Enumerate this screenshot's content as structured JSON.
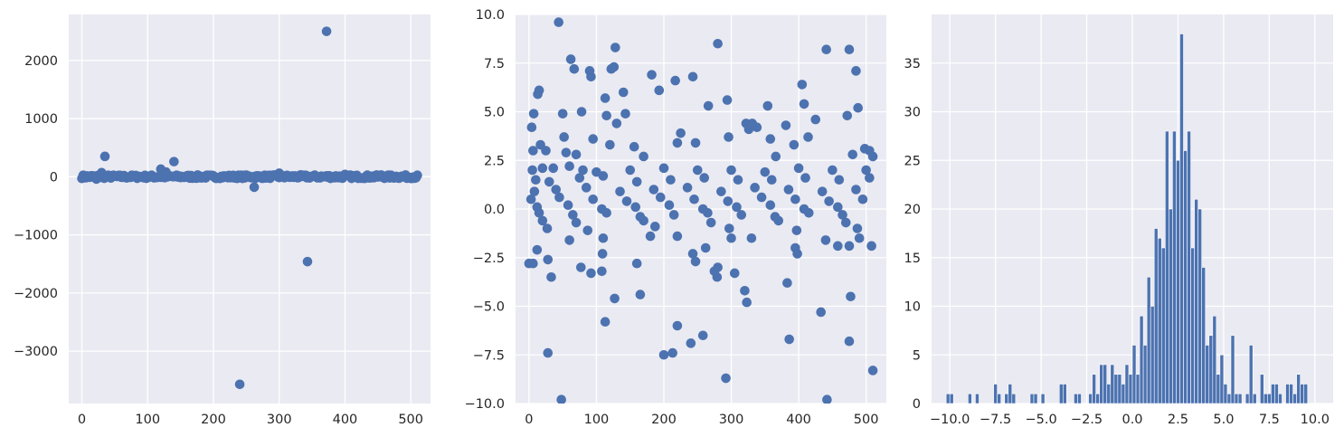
{
  "colors": {
    "background": "#eaeaf2",
    "grid": "#ffffff",
    "marker": "#4c72b0",
    "text": "#262626"
  },
  "chart_data": [
    {
      "type": "scatter",
      "title": "",
      "xlabel": "",
      "ylabel": "",
      "xlim": [
        -20,
        530
      ],
      "ylim": [
        -3900,
        2790
      ],
      "grid": true,
      "xticks": [
        0,
        100,
        200,
        300,
        400,
        500
      ],
      "xtick_labels": [
        "0",
        "100",
        "200",
        "300",
        "400",
        "500"
      ],
      "yticks": [
        -3000,
        -2000,
        -1000,
        0,
        1000,
        2000
      ],
      "ytick_labels": [
        "−3000",
        "−2000",
        "−1000",
        "0",
        "1000",
        "2000"
      ],
      "points": [
        [
          372,
          2500
        ],
        [
          35,
          350
        ],
        [
          140,
          260
        ],
        [
          120,
          130
        ],
        [
          128,
          80
        ],
        [
          30,
          70
        ],
        [
          300,
          60
        ],
        [
          400,
          40
        ],
        [
          455,
          30
        ],
        [
          22,
          -40
        ],
        [
          262,
          -180
        ],
        [
          343,
          -1460
        ],
        [
          240,
          -3570
        ]
      ],
      "dense_band": {
        "x_start": 0,
        "x_end": 511,
        "y_min": -30,
        "y_max": 30
      }
    },
    {
      "type": "scatter",
      "title": "",
      "xlabel": "",
      "ylabel": "",
      "xlim": [
        -20,
        530
      ],
      "ylim": [
        -10,
        10
      ],
      "grid": true,
      "xticks": [
        0,
        100,
        200,
        300,
        400,
        500
      ],
      "xtick_labels": [
        "0",
        "100",
        "200",
        "300",
        "400",
        "500"
      ],
      "yticks": [
        -10,
        -7.5,
        -5,
        -2.5,
        0,
        2.5,
        5,
        7.5,
        10
      ],
      "ytick_labels": [
        "−10.0",
        "−7.5",
        "−5.0",
        "−2.5",
        "0.0",
        "2.5",
        "5.0",
        "7.5",
        "10.0"
      ],
      "points": [
        [
          44,
          9.6
        ],
        [
          280,
          8.5
        ],
        [
          128,
          8.3
        ],
        [
          441,
          8.2
        ],
        [
          475,
          8.2
        ],
        [
          62,
          7.7
        ],
        [
          126,
          7.3
        ],
        [
          67,
          7.2
        ],
        [
          122,
          7.2
        ],
        [
          485,
          7.1
        ],
        [
          90,
          7.1
        ],
        [
          92,
          6.8
        ],
        [
          182,
          6.9
        ],
        [
          217,
          6.6
        ],
        [
          243,
          6.8
        ],
        [
          405,
          6.4
        ],
        [
          193,
          6.1
        ],
        [
          15,
          6.1
        ],
        [
          13,
          5.9
        ],
        [
          140,
          6.0
        ],
        [
          113,
          5.7
        ],
        [
          294,
          5.6
        ],
        [
          408,
          5.4
        ],
        [
          354,
          5.3
        ],
        [
          266,
          5.3
        ],
        [
          488,
          5.2
        ],
        [
          78,
          5.0
        ],
        [
          7,
          4.9
        ],
        [
          50,
          4.9
        ],
        [
          115,
          4.8
        ],
        [
          143,
          4.9
        ],
        [
          472,
          4.8
        ],
        [
          425,
          4.6
        ],
        [
          130,
          4.4
        ],
        [
          322,
          4.4
        ],
        [
          331,
          4.4
        ],
        [
          381,
          4.3
        ],
        [
          326,
          4.1
        ],
        [
          338,
          4.2
        ],
        [
          4,
          4.2
        ],
        [
          225,
          3.9
        ],
        [
          52,
          3.7
        ],
        [
          296,
          3.7
        ],
        [
          414,
          3.7
        ],
        [
          95,
          3.6
        ],
        [
          358,
          3.6
        ],
        [
          247,
          3.4
        ],
        [
          17,
          3.3
        ],
        [
          120,
          3.3
        ],
        [
          220,
          3.4
        ],
        [
          393,
          3.3
        ],
        [
          6,
          3.0
        ],
        [
          25,
          3.0
        ],
        [
          156,
          3.2
        ],
        [
          498,
          3.1
        ],
        [
          505,
          3.0
        ],
        [
          55,
          2.9
        ],
        [
          70,
          2.8
        ],
        [
          170,
          2.7
        ],
        [
          366,
          2.7
        ],
        [
          480,
          2.8
        ],
        [
          510,
          2.7
        ],
        [
          5,
          2.0
        ],
        [
          20,
          2.1
        ],
        [
          36,
          2.1
        ],
        [
          60,
          2.2
        ],
        [
          80,
          2.0
        ],
        [
          100,
          1.9
        ],
        [
          150,
          2.0
        ],
        [
          200,
          2.1
        ],
        [
          250,
          2.0
        ],
        [
          300,
          2.0
        ],
        [
          350,
          1.9
        ],
        [
          400,
          2.1
        ],
        [
          450,
          2.0
        ],
        [
          500,
          2.0
        ],
        [
          10,
          1.5
        ],
        [
          30,
          1.4
        ],
        [
          75,
          1.6
        ],
        [
          110,
          1.7
        ],
        [
          160,
          1.4
        ],
        [
          210,
          1.5
        ],
        [
          260,
          1.6
        ],
        [
          310,
          1.5
        ],
        [
          360,
          1.5
        ],
        [
          410,
          1.6
        ],
        [
          460,
          1.5
        ],
        [
          505,
          1.6
        ],
        [
          8,
          0.9
        ],
        [
          40,
          1.0
        ],
        [
          85,
          1.1
        ],
        [
          135,
          0.9
        ],
        [
          185,
          1.0
        ],
        [
          235,
          1.1
        ],
        [
          285,
          0.9
        ],
        [
          335,
          1.1
        ],
        [
          385,
          1.0
        ],
        [
          435,
          0.9
        ],
        [
          485,
          1.0
        ],
        [
          3,
          0.5
        ],
        [
          45,
          0.6
        ],
        [
          95,
          0.5
        ],
        [
          145,
          0.4
        ],
        [
          195,
          0.6
        ],
        [
          245,
          0.5
        ],
        [
          295,
          0.4
        ],
        [
          345,
          0.6
        ],
        [
          395,
          0.5
        ],
        [
          445,
          0.4
        ],
        [
          495,
          0.5
        ],
        [
          12,
          0.1
        ],
        [
          58,
          0.2
        ],
        [
          108,
          0.0
        ],
        [
          158,
          0.1
        ],
        [
          208,
          0.2
        ],
        [
          258,
          0.0
        ],
        [
          308,
          0.1
        ],
        [
          358,
          0.2
        ],
        [
          408,
          0.0
        ],
        [
          458,
          0.1
        ],
        [
          15,
          -0.2
        ],
        [
          65,
          -0.3
        ],
        [
          115,
          -0.2
        ],
        [
          165,
          -0.4
        ],
        [
          215,
          -0.3
        ],
        [
          265,
          -0.2
        ],
        [
          315,
          -0.3
        ],
        [
          365,
          -0.4
        ],
        [
          415,
          -0.2
        ],
        [
          465,
          -0.3
        ],
        [
          20,
          -0.6
        ],
        [
          70,
          -0.7
        ],
        [
          170,
          -0.6
        ],
        [
          270,
          -0.7
        ],
        [
          370,
          -0.6
        ],
        [
          470,
          -0.7
        ],
        [
          27,
          -1.0
        ],
        [
          87,
          -1.1
        ],
        [
          187,
          -0.9
        ],
        [
          297,
          -1.0
        ],
        [
          397,
          -1.1
        ],
        [
          487,
          -1.0
        ],
        [
          110,
          -1.5
        ],
        [
          220,
          -1.4
        ],
        [
          330,
          -1.5
        ],
        [
          440,
          -1.6
        ],
        [
          60,
          -1.6
        ],
        [
          180,
          -1.4
        ],
        [
          300,
          -1.5
        ],
        [
          12,
          -2.1
        ],
        [
          262,
          -2.0
        ],
        [
          395,
          -2.0
        ],
        [
          458,
          -1.9
        ],
        [
          475,
          -1.9
        ],
        [
          490,
          -1.5
        ],
        [
          508,
          -1.9
        ],
        [
          109,
          -2.3
        ],
        [
          243,
          -2.3
        ],
        [
          398,
          -2.3
        ],
        [
          0,
          -2.8
        ],
        [
          6,
          -2.8
        ],
        [
          28,
          -2.6
        ],
        [
          160,
          -2.8
        ],
        [
          247,
          -2.7
        ],
        [
          280,
          -3.0
        ],
        [
          77,
          -3.0
        ],
        [
          92,
          -3.3
        ],
        [
          108,
          -3.2
        ],
        [
          275,
          -3.2
        ],
        [
          305,
          -3.3
        ],
        [
          279,
          -3.5
        ],
        [
          33,
          -3.5
        ],
        [
          383,
          -3.8
        ],
        [
          320,
          -4.2
        ],
        [
          165,
          -4.4
        ],
        [
          477,
          -4.5
        ],
        [
          127,
          -4.6
        ],
        [
          323,
          -4.8
        ],
        [
          433,
          -5.3
        ],
        [
          113,
          -5.8
        ],
        [
          220,
          -6.0
        ],
        [
          258,
          -6.5
        ],
        [
          386,
          -6.7
        ],
        [
          475,
          -6.8
        ],
        [
          240,
          -6.9
        ],
        [
          28,
          -7.4
        ],
        [
          200,
          -7.5
        ],
        [
          213,
          -7.4
        ],
        [
          510,
          -8.3
        ],
        [
          292,
          -8.7
        ],
        [
          48,
          -9.8
        ],
        [
          442,
          -9.8
        ]
      ]
    },
    {
      "type": "bar",
      "subtype": "histogram",
      "title": "",
      "xlabel": "",
      "ylabel": "",
      "xlim": [
        -11,
        11
      ],
      "ylim": [
        0,
        40
      ],
      "grid": true,
      "xticks": [
        -10,
        -7.5,
        -5,
        -2.5,
        0,
        2.5,
        5,
        7.5,
        10
      ],
      "xtick_labels": [
        "−10.0",
        "−7.5",
        "−5.0",
        "−2.5",
        "0.0",
        "2.5",
        "5.0",
        "7.5",
        "10.0"
      ],
      "yticks": [
        0,
        5,
        10,
        15,
        20,
        25,
        30,
        35
      ],
      "ytick_labels": [
        "0",
        "5",
        "10",
        "15",
        "20",
        "25",
        "30",
        "35"
      ],
      "bin_range": [
        -10.2,
        9.8
      ],
      "bin_width": 0.2,
      "counts": [
        1,
        1,
        0,
        0,
        0,
        0,
        1,
        0,
        1,
        0,
        0,
        0,
        0,
        2,
        1,
        0,
        1,
        2,
        1,
        0,
        0,
        0,
        0,
        1,
        1,
        0,
        1,
        0,
        0,
        0,
        0,
        2,
        2,
        0,
        0,
        1,
        1,
        0,
        0,
        1,
        3,
        1,
        4,
        4,
        2,
        4,
        3,
        3,
        2,
        4,
        3,
        6,
        3,
        9,
        6,
        13,
        10,
        18,
        17,
        16,
        28,
        20,
        28,
        25,
        38,
        26,
        28,
        16,
        21,
        20,
        14,
        6,
        7,
        9,
        3,
        5,
        2,
        1,
        7,
        1,
        1,
        0,
        1,
        6,
        1,
        0,
        3,
        1,
        1,
        2,
        2,
        1,
        0,
        2,
        2,
        1,
        3,
        2,
        2,
        0
      ]
    }
  ]
}
